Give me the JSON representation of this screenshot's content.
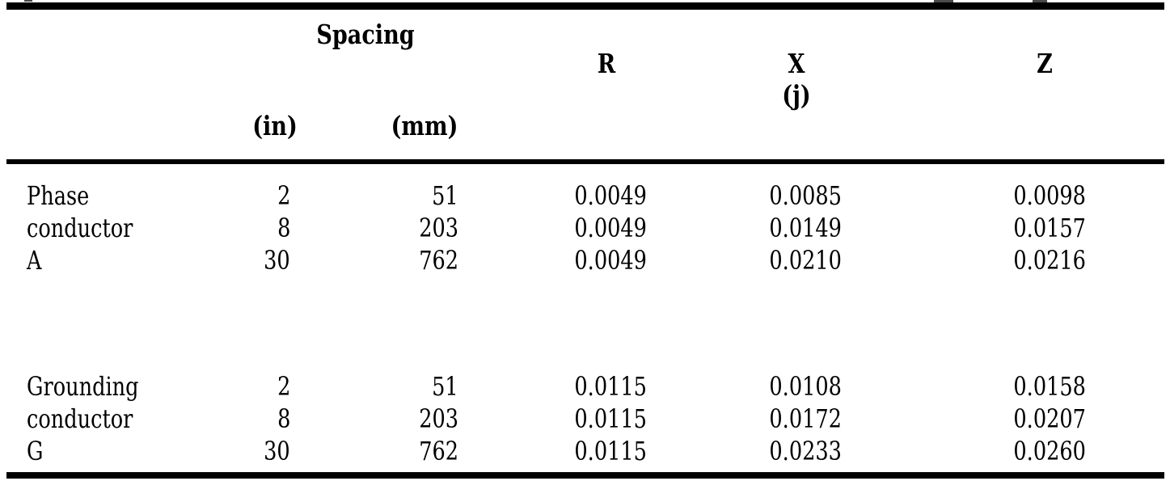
{
  "table": {
    "headers": {
      "spacing": "Spacing",
      "in": "(in)",
      "mm": "(mm)",
      "r": "R",
      "x": "X",
      "x_sub": "(j)",
      "z": "Z"
    },
    "groups": [
      {
        "label_lines": [
          "Phase",
          "conductor",
          "A"
        ],
        "rows": [
          {
            "in": "2",
            "mm": "51",
            "r": "0.0049",
            "x": "0.0085",
            "z": "0.0098"
          },
          {
            "in": "8",
            "mm": "203",
            "r": "0.0049",
            "x": "0.0149",
            "z": "0.0157"
          },
          {
            "in": "30",
            "mm": "762",
            "r": "0.0049",
            "x": "0.0210",
            "z": "0.0216"
          }
        ]
      },
      {
        "label_lines": [
          "Grounding",
          "conductor",
          "G"
        ],
        "rows": [
          {
            "in": "2",
            "mm": "51",
            "r": "0.0115",
            "x": "0.0108",
            "z": "0.0158"
          },
          {
            "in": "8",
            "mm": "203",
            "r": "0.0115",
            "x": "0.0172",
            "z": "0.0207"
          },
          {
            "in": "30",
            "mm": "762",
            "r": "0.0115",
            "x": "0.0233",
            "z": "0.0260"
          }
        ]
      }
    ]
  },
  "colors": {
    "background": "#ffffff",
    "text": "#000000",
    "rule": "#000000"
  }
}
